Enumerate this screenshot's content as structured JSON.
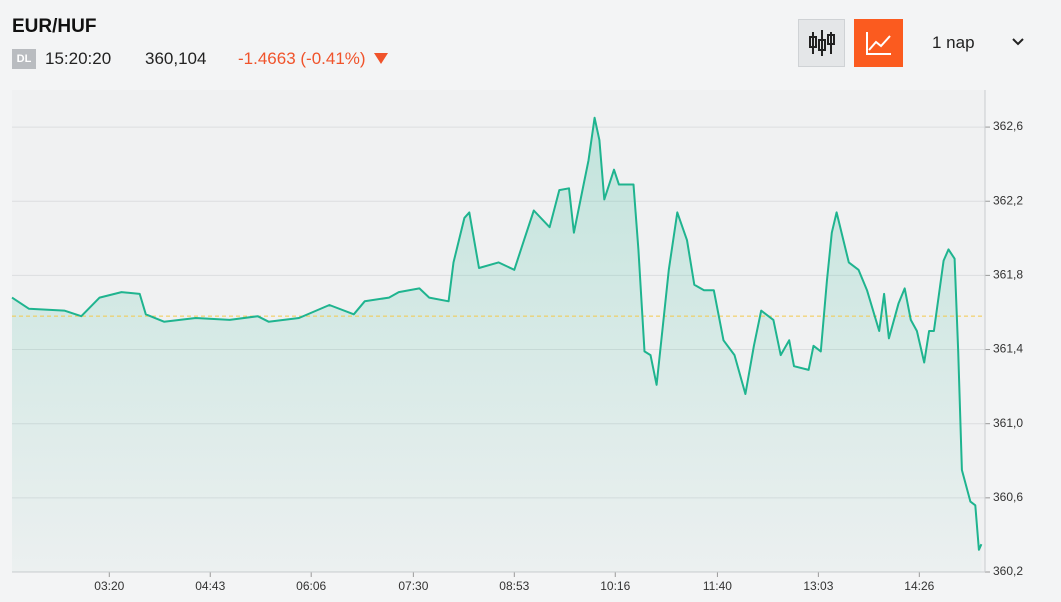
{
  "header": {
    "symbol": "EUR/HUF",
    "badge": "DL",
    "time": "15:20:20",
    "price": "360,104",
    "change": "-1.4663 (-0.41%)",
    "period": "1 nap"
  },
  "chart_data": {
    "type": "line",
    "color": "#1fb48f",
    "reference_line": 361.58,
    "reference_color": "#f2c94c",
    "x": [
      120,
      134,
      163,
      177,
      192,
      210,
      225,
      230,
      245,
      271,
      299,
      322,
      331,
      356,
      381,
      401,
      410,
      430,
      438,
      455,
      463,
      479,
      483,
      492,
      496,
      504,
      520,
      533,
      541,
      549,
      562,
      570,
      578,
      582,
      590,
      594,
      599,
      603,
      607,
      615,
      619,
      631,
      635,
      640,
      645,
      650,
      660,
      667,
      675,
      681,
      689,
      697,
      705,
      714,
      723,
      730,
      736,
      746,
      752,
      759,
      763,
      775,
      779,
      785,
      790,
      794,
      798,
      808,
      816,
      823,
      833,
      837,
      841,
      849,
      854,
      859,
      864,
      870,
      874,
      878,
      886,
      890,
      895,
      898,
      901,
      908,
      912,
      915,
      917
    ],
    "values": [
      361.68,
      361.62,
      361.61,
      361.58,
      361.68,
      361.71,
      361.7,
      361.59,
      361.55,
      361.57,
      361.56,
      361.58,
      361.55,
      361.57,
      361.64,
      361.59,
      361.66,
      361.68,
      361.71,
      361.73,
      361.68,
      361.66,
      361.87,
      362.11,
      362.14,
      361.84,
      361.87,
      361.83,
      361.99,
      362.15,
      362.06,
      362.26,
      362.27,
      362.03,
      362.29,
      362.42,
      362.65,
      362.53,
      362.21,
      362.37,
      362.29,
      362.29,
      361.94,
      361.39,
      361.37,
      361.21,
      361.83,
      362.14,
      361.99,
      361.75,
      361.72,
      361.72,
      361.45,
      361.37,
      361.16,
      361.42,
      361.61,
      361.56,
      361.37,
      361.45,
      361.31,
      361.29,
      361.42,
      361.39,
      361.77,
      362.03,
      362.14,
      361.87,
      361.83,
      361.72,
      361.5,
      361.7,
      361.46,
      361.65,
      361.73,
      361.56,
      361.5,
      361.33,
      361.5,
      361.5,
      361.88,
      361.94,
      361.89,
      361.39,
      360.75,
      360.58,
      360.56,
      360.32,
      360.35
    ],
    "xlim": [
      120,
      920
    ],
    "xticks": [
      {
        "value": 200,
        "label": "03:20"
      },
      {
        "value": 283,
        "label": "04:43"
      },
      {
        "value": 366,
        "label": "06:06"
      },
      {
        "value": 450,
        "label": "07:30"
      },
      {
        "value": 533,
        "label": "08:53"
      },
      {
        "value": 616,
        "label": "10:16"
      },
      {
        "value": 700,
        "label": "11:40"
      },
      {
        "value": 783,
        "label": "13:03"
      },
      {
        "value": 866,
        "label": "14:26"
      }
    ],
    "ylim": [
      360.2,
      362.8
    ],
    "yticks": [
      {
        "value": 360.2,
        "label": "360,2"
      },
      {
        "value": 360.6,
        "label": "360,6"
      },
      {
        "value": 361.0,
        "label": "361,0"
      },
      {
        "value": 361.4,
        "label": "361,4"
      },
      {
        "value": 361.8,
        "label": "361,8"
      },
      {
        "value": 362.2,
        "label": "362,2"
      },
      {
        "value": 362.6,
        "label": "362,6"
      }
    ],
    "grid": true
  }
}
